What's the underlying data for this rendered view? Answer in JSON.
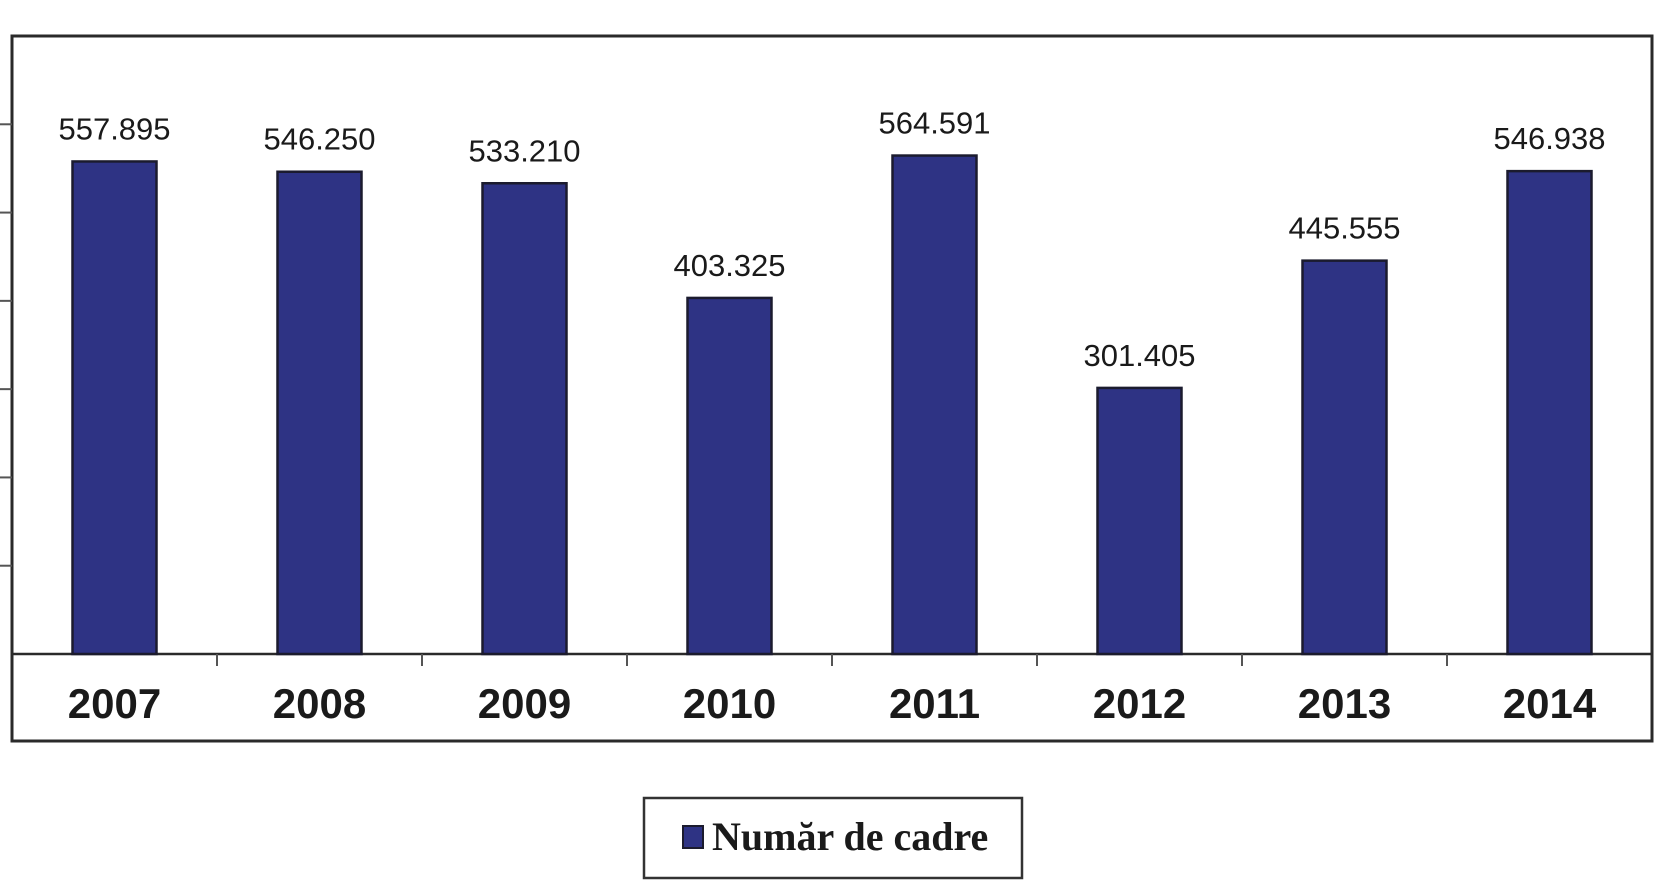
{
  "chart_data": {
    "type": "bar",
    "categories": [
      "2007",
      "2008",
      "2009",
      "2010",
      "2011",
      "2012",
      "2013",
      "2014"
    ],
    "series": [
      {
        "name": "Număr de cadre",
        "values": [
          557895,
          546250,
          533210,
          403325,
          564591,
          301405,
          445555,
          546938
        ],
        "labels": [
          "557.895",
          "546.250",
          "533.210",
          "403.325",
          "564.591",
          "301.405",
          "445.555",
          "546.938"
        ],
        "color": "#2e3384"
      }
    ],
    "title": "",
    "xlabel": "",
    "ylabel": "",
    "ylim": [
      0,
      700000
    ],
    "legend": "bottom-center",
    "grid": false
  }
}
